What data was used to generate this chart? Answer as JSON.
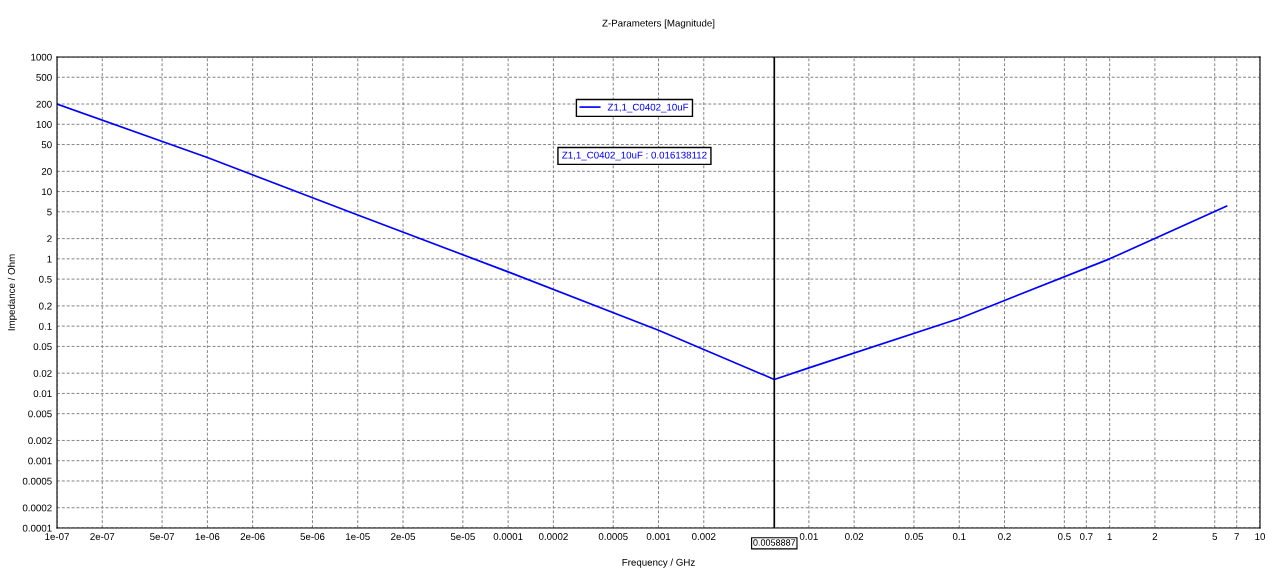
{
  "chart_data": {
    "type": "line",
    "title": "Z-Parameters [Magnitude]",
    "xlabel": "Frequency / GHz",
    "ylabel": "Impedance / Ohm",
    "log": "xy",
    "grid": true,
    "legend": "top",
    "line_style": "solid",
    "marker": "none",
    "xlim": [
      1e-07,
      10
    ],
    "ylim": [
      0.0001,
      1000
    ],
    "xticks": [
      {
        "value": 1e-07,
        "label": "1e-07"
      },
      {
        "value": 2e-07,
        "label": "2e-07"
      },
      {
        "value": 5e-07,
        "label": "5e-07"
      },
      {
        "value": 1e-06,
        "label": "1e-06"
      },
      {
        "value": 2e-06,
        "label": "2e-06"
      },
      {
        "value": 5e-06,
        "label": "5e-06"
      },
      {
        "value": 1e-05,
        "label": "1e-05"
      },
      {
        "value": 2e-05,
        "label": "2e-05"
      },
      {
        "value": 5e-05,
        "label": "5e-05"
      },
      0.0001,
      0.0002,
      0.0005,
      0.001,
      0.002,
      0.01,
      0.02,
      0.05,
      0.1,
      0.2,
      0.5,
      0.7,
      1,
      2,
      5,
      7,
      10
    ],
    "yticks": [
      0.0001,
      0.0002,
      0.0005,
      0.001,
      0.002,
      0.005,
      0.01,
      0.02,
      0.05,
      0.1,
      0.2,
      0.5,
      1,
      2,
      5,
      10,
      20,
      50,
      100,
      200,
      500,
      1000
    ],
    "series": [
      {
        "name": "Z1,1_C0402_10uF",
        "color": "#0000ff",
        "x": [
          1e-07,
          1e-06,
          1e-05,
          0.0001,
          0.001,
          0.0058887,
          0.01,
          0.1,
          1,
          6
        ],
        "values": [
          200,
          32,
          4.5,
          0.64,
          0.087,
          0.016138112,
          0.024,
          0.13,
          1.0,
          6.1
        ]
      }
    ],
    "ref_lines": [
      {
        "axis": "x",
        "value": 0.0058887,
        "label": "0.0058887",
        "color": "#000000"
      }
    ],
    "annotations": [
      "Z1,1_C0402_10uF : 0.016138112"
    ]
  }
}
